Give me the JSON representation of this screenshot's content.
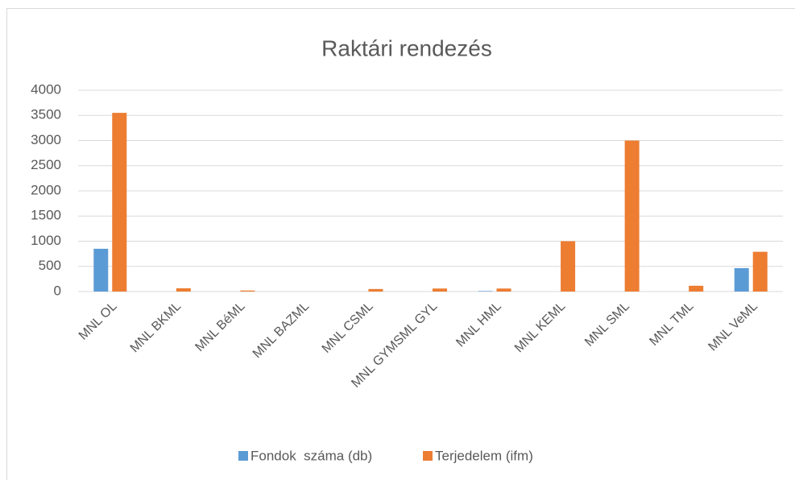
{
  "chart_data": {
    "type": "bar",
    "title": "Raktári rendezés",
    "categories": [
      "MNL OL",
      "MNL BKML",
      "MNL BéML",
      "MNL BAZML",
      "MNL CSML",
      "MNL GYMSML GYL",
      "MNL HML",
      "MNL KEML",
      "MNL SML",
      "MNL TML",
      "MNL VeML"
    ],
    "series": [
      {
        "name": "Fondok  száma (db)",
        "color": "#5b9bd5",
        "values": [
          850,
          0,
          0,
          0,
          0,
          0,
          10,
          0,
          0,
          0,
          465
        ]
      },
      {
        "name": "Terjedelem (ifm)",
        "color": "#ed7d31",
        "values": [
          3550,
          65,
          20,
          0,
          50,
          60,
          60,
          1000,
          3000,
          115,
          790
        ]
      }
    ],
    "ylim": [
      0,
      4000
    ],
    "yticks": [
      0,
      500,
      1000,
      1500,
      2000,
      2500,
      3000,
      3500,
      4000
    ],
    "grid": true,
    "legend": "bottom"
  }
}
